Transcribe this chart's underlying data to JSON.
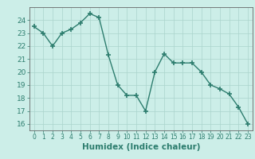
{
  "x": [
    0,
    1,
    2,
    3,
    4,
    5,
    6,
    7,
    8,
    9,
    10,
    11,
    12,
    13,
    14,
    15,
    16,
    17,
    18,
    19,
    20,
    21,
    22,
    23
  ],
  "y": [
    23.5,
    23.0,
    22.0,
    23.0,
    23.3,
    23.8,
    24.5,
    24.2,
    21.3,
    19.0,
    18.2,
    18.2,
    17.0,
    20.0,
    21.4,
    20.7,
    20.7,
    20.7,
    20.0,
    19.0,
    18.7,
    18.3,
    17.3,
    16.0
  ],
  "xlabel": "Humidex (Indice chaleur)",
  "ylim": [
    15.5,
    25.0
  ],
  "xlim": [
    -0.5,
    23.5
  ],
  "yticks": [
    16,
    17,
    18,
    19,
    20,
    21,
    22,
    23,
    24
  ],
  "xticks": [
    0,
    1,
    2,
    3,
    4,
    5,
    6,
    7,
    8,
    9,
    10,
    11,
    12,
    13,
    14,
    15,
    16,
    17,
    18,
    19,
    20,
    21,
    22,
    23
  ],
  "line_color": "#2d7d6e",
  "marker_color": "#2d7d6e",
  "bg_color": "#cceee8",
  "grid_color": "#aad4cc",
  "border_color": "#666666",
  "tick_label_color": "#2d7d6e",
  "xlabel_fontsize": 7.5,
  "tick_fontsize": 5.5,
  "ytick_fontsize": 6.5
}
